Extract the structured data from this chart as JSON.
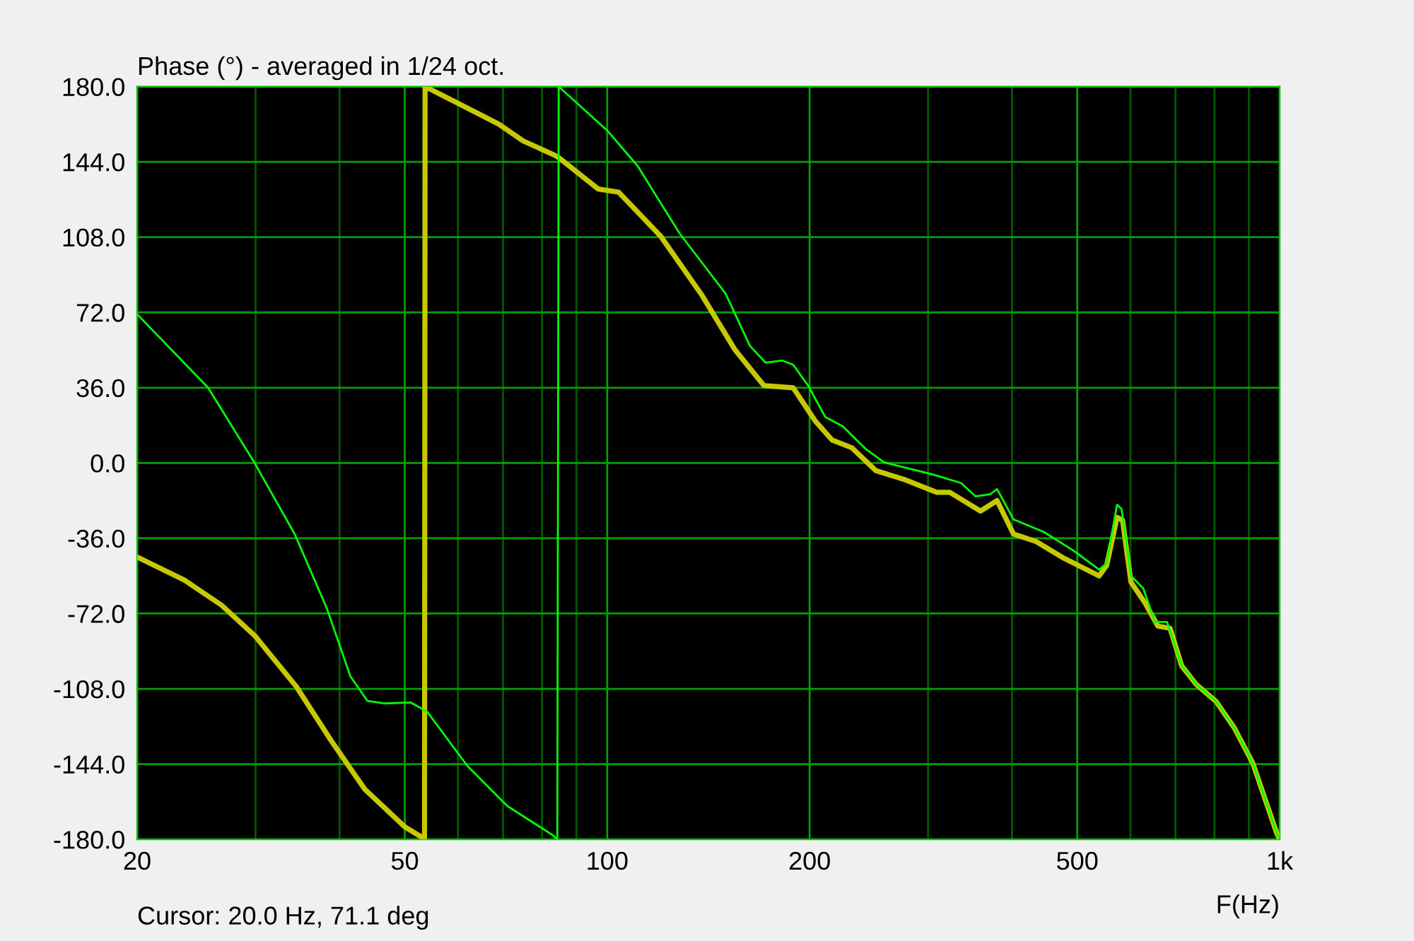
{
  "chart_data": {
    "type": "line",
    "title": "Phase (°) - averaged in 1/24 oct.",
    "xlabel": "F(Hz)",
    "annotations": [
      "Cursor: 20.0 Hz, 71.1 deg"
    ],
    "log": "x",
    "grid": true,
    "line_style": "solid",
    "marker": "none",
    "xlim": [
      20,
      1000
    ],
    "xticks": [
      20,
      {
        "value": 30,
        "label": null
      },
      {
        "value": 40,
        "label": null
      },
      50,
      {
        "value": 60,
        "label": null
      },
      {
        "value": 70,
        "label": null
      },
      {
        "value": 80,
        "label": null
      },
      {
        "value": 90,
        "label": null
      },
      100,
      200,
      {
        "value": 300,
        "label": null
      },
      {
        "value": 400,
        "label": null
      },
      500,
      {
        "value": 600,
        "label": null
      },
      {
        "value": 700,
        "label": null
      },
      {
        "value": 800,
        "label": null
      },
      {
        "value": 900,
        "label": null
      },
      {
        "value": 1000,
        "label": "1k"
      }
    ],
    "ylim": [
      -180,
      180
    ],
    "yticks": [
      {
        "value": 180,
        "label": "180.0"
      },
      {
        "value": 144,
        "label": "144.0"
      },
      {
        "value": 108,
        "label": "108.0"
      },
      {
        "value": 72,
        "label": "72.0"
      },
      {
        "value": 36,
        "label": "36.0"
      },
      {
        "value": 0,
        "label": "0.0"
      },
      {
        "value": -36,
        "label": "-36.0"
      },
      {
        "value": -72,
        "label": "-72.0"
      },
      {
        "value": -108,
        "label": "-108.0"
      },
      {
        "value": -144,
        "label": "-144.0"
      },
      {
        "value": -180,
        "label": "-180.0"
      }
    ],
    "series": [
      {
        "color": "#c8c800",
        "x": [
          20,
          23.5,
          26.7,
          29.9,
          34.5,
          38.9,
          43.6,
          50,
          53,
          53.5,
          53.6,
          60,
          69,
          75,
          83,
          84.7,
          97,
          104,
          120,
          138,
          155,
          171,
          189,
          204,
          216,
          231,
          251,
          276,
          309,
          323,
          359,
          380,
          402,
          434,
          478,
          539,
          553,
          573,
          584,
          601,
          631,
          659,
          687,
          715,
          752,
          804,
          856,
          912,
          990,
          1000
        ],
        "values": [
          -45,
          -56,
          -68,
          -82.5,
          -107,
          -133,
          -156,
          -174,
          -179,
          -180,
          180,
          172,
          162,
          154,
          147.6,
          146,
          131,
          129.5,
          108.6,
          80.7,
          54,
          37,
          36,
          20,
          11,
          7.3,
          -3.7,
          -7.8,
          -14,
          -14,
          -23,
          -18,
          -34,
          -37.5,
          -45.6,
          -54,
          -49,
          -26,
          -27.4,
          -57,
          -67,
          -78,
          -79,
          -97,
          -106,
          -114,
          -126.6,
          -143.5,
          -177,
          -180
        ]
      },
      {
        "color": "#00ff00",
        "x": [
          20,
          25.5,
          29.9,
          34.3,
          38.3,
          41.5,
          44,
          46.6,
          51,
          54,
          62,
          71,
          83,
          84.3,
          84.7,
          100,
          111,
          128,
          150,
          163,
          172,
          182,
          189,
          199,
          211,
          224,
          243,
          258,
          305,
          336,
          353,
          371,
          380,
          402,
          446,
          494,
          539,
          553,
          573,
          582,
          601,
          627,
          652,
          680,
          715,
          752,
          804,
          856,
          912,
          990,
          1000
        ],
        "values": [
          71.1,
          36,
          0,
          -34,
          -69.6,
          -102,
          -113.8,
          -115,
          -114.5,
          -119,
          -145,
          -164,
          -178,
          -180,
          180,
          159,
          142,
          110,
          81,
          56,
          48,
          49,
          47,
          37,
          22,
          17.5,
          6.4,
          0.3,
          -5.5,
          -9.6,
          -16,
          -15,
          -12.5,
          -27,
          -33,
          -42,
          -51,
          -48,
          -20,
          -22,
          -54,
          -60,
          -76,
          -76,
          -97,
          -106,
          -114,
          -126.6,
          -143.5,
          -177,
          -180
        ]
      }
    ]
  }
}
